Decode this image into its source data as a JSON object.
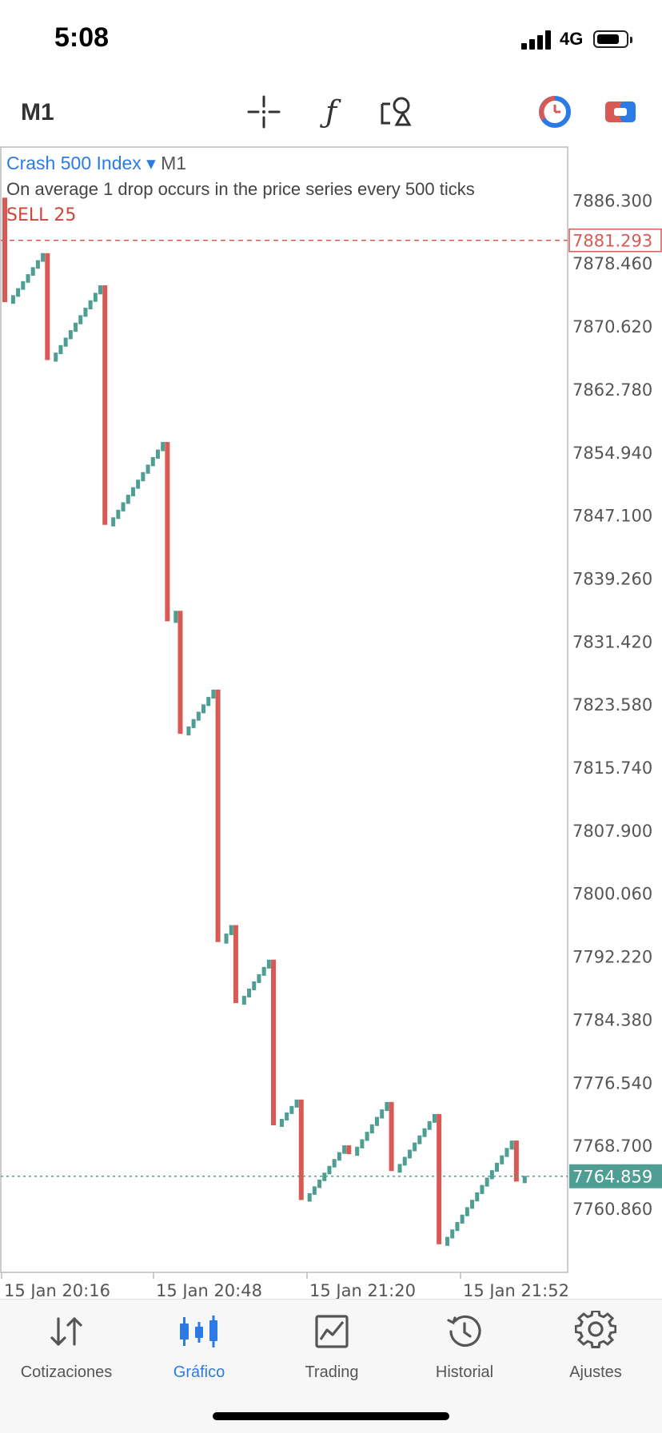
{
  "status_bar": {
    "time": "5:08",
    "network": "4G",
    "battery_level": 0.78
  },
  "toolbar": {
    "timeframe": "M1",
    "icons": [
      "crosshair-icon",
      "function-icon",
      "objects-icon",
      "clock-icon",
      "toggle-icon"
    ],
    "function_glyph": "ƒ"
  },
  "chart_info": {
    "symbol": "Crash 500 Index",
    "dropdown_glyph": "▾",
    "timeframe": "M1",
    "description": "On average 1 drop occurs in the price series every 500 ticks",
    "sell_label": "SELL 25"
  },
  "chart_data": {
    "type": "candlestick",
    "y_ticks": [
      "7886.300",
      "7878.460",
      "7870.620",
      "7862.780",
      "7854.940",
      "7847.100",
      "7839.260",
      "7831.420",
      "7823.580",
      "7815.740",
      "7807.900",
      "7800.060",
      "7792.220",
      "7784.380",
      "7776.540",
      "7768.700",
      "7760.860"
    ],
    "ylim": [
      7753.2,
      7892.6
    ],
    "x_ticks": [
      "15 Jan 20:16",
      "15 Jan 20:48",
      "15 Jan 21:20",
      "15 Jan 21:52"
    ],
    "sell_price": "7881.293",
    "current_price": "7764.859",
    "up_color": "#4f9e93",
    "down_color": "#d85a54",
    "segments": [
      {
        "from": 7886.6,
        "to": 7873.6,
        "dir": "down"
      },
      {
        "from": 7873.6,
        "to": 7879.7,
        "dir": "up"
      },
      {
        "from": 7879.7,
        "to": 7866.4,
        "dir": "down"
      },
      {
        "from": 7866.4,
        "to": 7875.7,
        "dir": "up"
      },
      {
        "from": 7875.7,
        "to": 7845.9,
        "dir": "down"
      },
      {
        "from": 7845.9,
        "to": 7856.2,
        "dir": "up"
      },
      {
        "from": 7856.2,
        "to": 7833.9,
        "dir": "down"
      },
      {
        "from": 7833.9,
        "to": 7835.2,
        "dir": "up"
      },
      {
        "from": 7835.2,
        "to": 7819.9,
        "dir": "down"
      },
      {
        "from": 7819.9,
        "to": 7825.4,
        "dir": "up"
      },
      {
        "from": 7825.4,
        "to": 7794.0,
        "dir": "down"
      },
      {
        "from": 7794.0,
        "to": 7796.1,
        "dir": "up"
      },
      {
        "from": 7796.1,
        "to": 7786.4,
        "dir": "down"
      },
      {
        "from": 7786.4,
        "to": 7791.8,
        "dir": "up"
      },
      {
        "from": 7791.8,
        "to": 7771.2,
        "dir": "down"
      },
      {
        "from": 7771.2,
        "to": 7774.4,
        "dir": "up"
      },
      {
        "from": 7774.4,
        "to": 7761.9,
        "dir": "down"
      },
      {
        "from": 7761.9,
        "to": 7768.7,
        "dir": "up"
      },
      {
        "from": 7768.7,
        "to": 7767.6,
        "dir": "down"
      },
      {
        "from": 7767.6,
        "to": 7774.1,
        "dir": "up"
      },
      {
        "from": 7774.1,
        "to": 7765.5,
        "dir": "down"
      },
      {
        "from": 7765.5,
        "to": 7772.6,
        "dir": "up"
      },
      {
        "from": 7772.6,
        "to": 7756.4,
        "dir": "down"
      },
      {
        "from": 7756.4,
        "to": 7769.3,
        "dir": "up"
      },
      {
        "from": 7769.3,
        "to": 7764.2,
        "dir": "down"
      },
      {
        "from": 7764.2,
        "to": 7764.9,
        "dir": "up"
      }
    ]
  },
  "tabs": [
    {
      "label": "Cotizaciones",
      "icon": "quotes-icon",
      "active": false
    },
    {
      "label": "Gráfico",
      "icon": "chart-icon",
      "active": true
    },
    {
      "label": "Trading",
      "icon": "trading-icon",
      "active": false
    },
    {
      "label": "Historial",
      "icon": "history-icon",
      "active": false
    },
    {
      "label": "Ajustes",
      "icon": "settings-icon",
      "active": false
    }
  ]
}
